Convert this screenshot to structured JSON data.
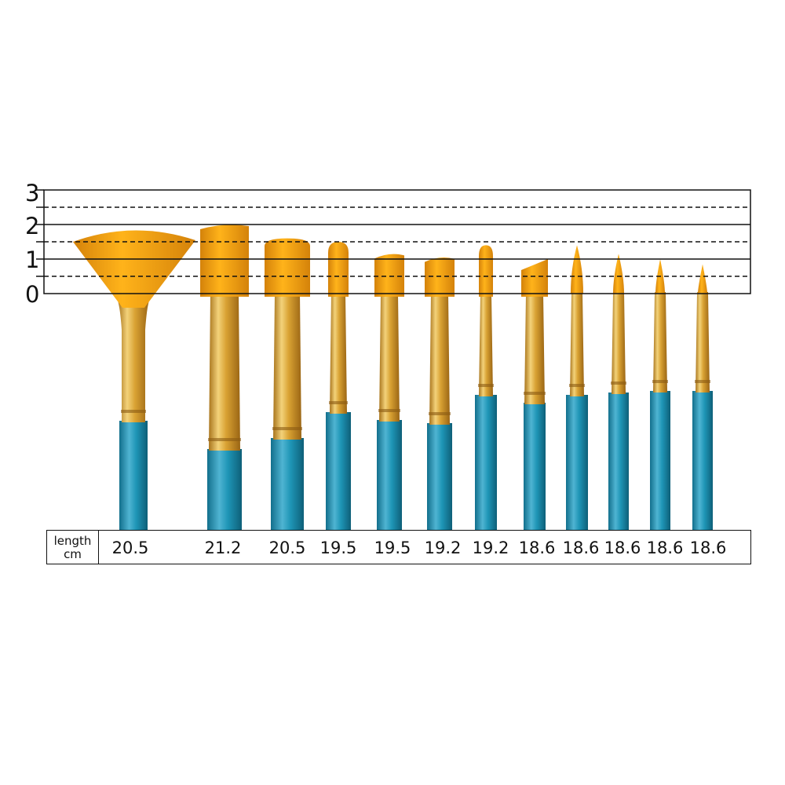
{
  "scale": {
    "labels": [
      "3",
      "2",
      "1",
      "0"
    ],
    "solid_levels": [
      0,
      1,
      2,
      3
    ],
    "dashed_levels": [
      0.5,
      1.5,
      2.5
    ]
  },
  "length_table": {
    "header_line1": "length",
    "header_line2": "cm",
    "values": [
      "20.5",
      "21.2",
      "20.5",
      "19.5",
      "19.5",
      "19.2",
      "19.2",
      "18.6",
      "18.6",
      "18.6",
      "18.6",
      "18.6"
    ]
  },
  "brushes": [
    {
      "type": "fan",
      "tip_height_units": 2.0
    },
    {
      "type": "flat-wide",
      "tip_height_units": 2.0
    },
    {
      "type": "filbert",
      "tip_height_units": 1.6
    },
    {
      "type": "round",
      "tip_height_units": 1.5
    },
    {
      "type": "flat",
      "tip_height_units": 1.15
    },
    {
      "type": "flat",
      "tip_height_units": 1.05
    },
    {
      "type": "round",
      "tip_height_units": 1.4
    },
    {
      "type": "angle",
      "tip_height_units": 1.0
    },
    {
      "type": "pointed-round",
      "tip_height_units": 1.4
    },
    {
      "type": "pointed-round",
      "tip_height_units": 1.15
    },
    {
      "type": "pointed-round",
      "tip_height_units": 1.0
    },
    {
      "type": "pointed-round",
      "tip_height_units": 0.85
    }
  ],
  "colors": {
    "bristle": "#F2A10C",
    "bristle_dark": "#D4820A",
    "ferrule": "#D9A233",
    "ferrule_light": "#F3D27A",
    "handle": "#1E95B6",
    "handle_light": "#4FB4D2",
    "line": "#111111"
  }
}
